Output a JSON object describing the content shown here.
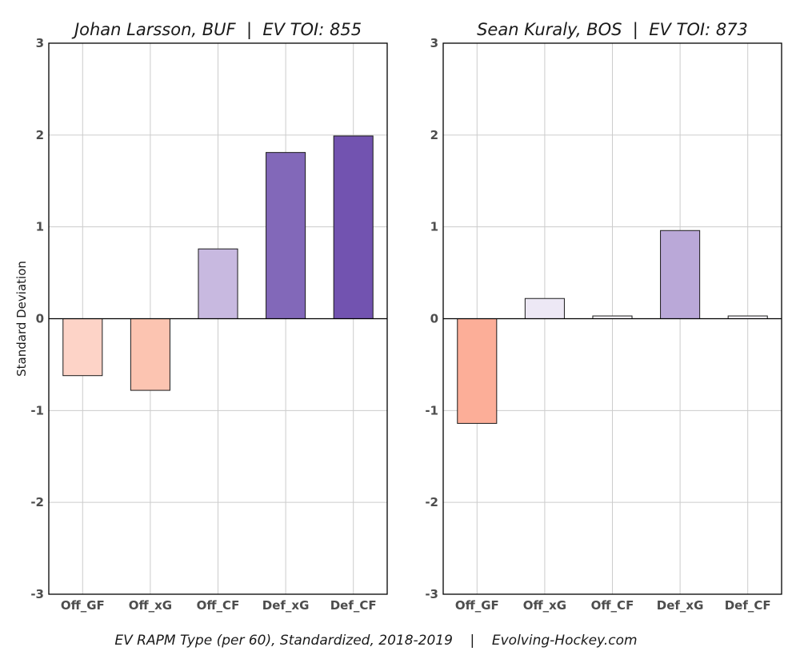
{
  "chart_data": [
    {
      "type": "bar",
      "title": "Johan Larsson, BUF  |  EV TOI: 855",
      "ylabel": "Standard Deviation",
      "categories": [
        "Off_GF",
        "Off_xG",
        "Off_CF",
        "Def_xG",
        "Def_CF"
      ],
      "values": [
        -0.62,
        -0.78,
        0.76,
        1.81,
        1.99
      ],
      "colors": [
        "#fdd3c7",
        "#fcc4b1",
        "#c8b9e0",
        "#8268b9",
        "#7253b0"
      ],
      "ylim": [
        -3,
        3
      ],
      "yticks": [
        "-3",
        "-2",
        "-1",
        "0",
        "1",
        "2",
        "3"
      ],
      "grid": true
    },
    {
      "type": "bar",
      "title": "Sean Kuraly, BOS  |  EV TOI: 873",
      "ylabel": "",
      "categories": [
        "Off_GF",
        "Off_xG",
        "Off_CF",
        "Def_xG",
        "Def_CF"
      ],
      "values": [
        -1.14,
        0.22,
        0.03,
        0.96,
        0.03
      ],
      "colors": [
        "#fcae98",
        "#ede8f5",
        "#fbfafd",
        "#baa8d8",
        "#fbfafd"
      ],
      "ylim": [
        -3,
        3
      ],
      "yticks": [
        "-3",
        "-2",
        "-1",
        "0",
        "1",
        "2",
        "3"
      ],
      "grid": true
    }
  ],
  "footer": "EV RAPM Type (per 60), Standardized, 2018-2019    |    Evolving-Hockey.com"
}
